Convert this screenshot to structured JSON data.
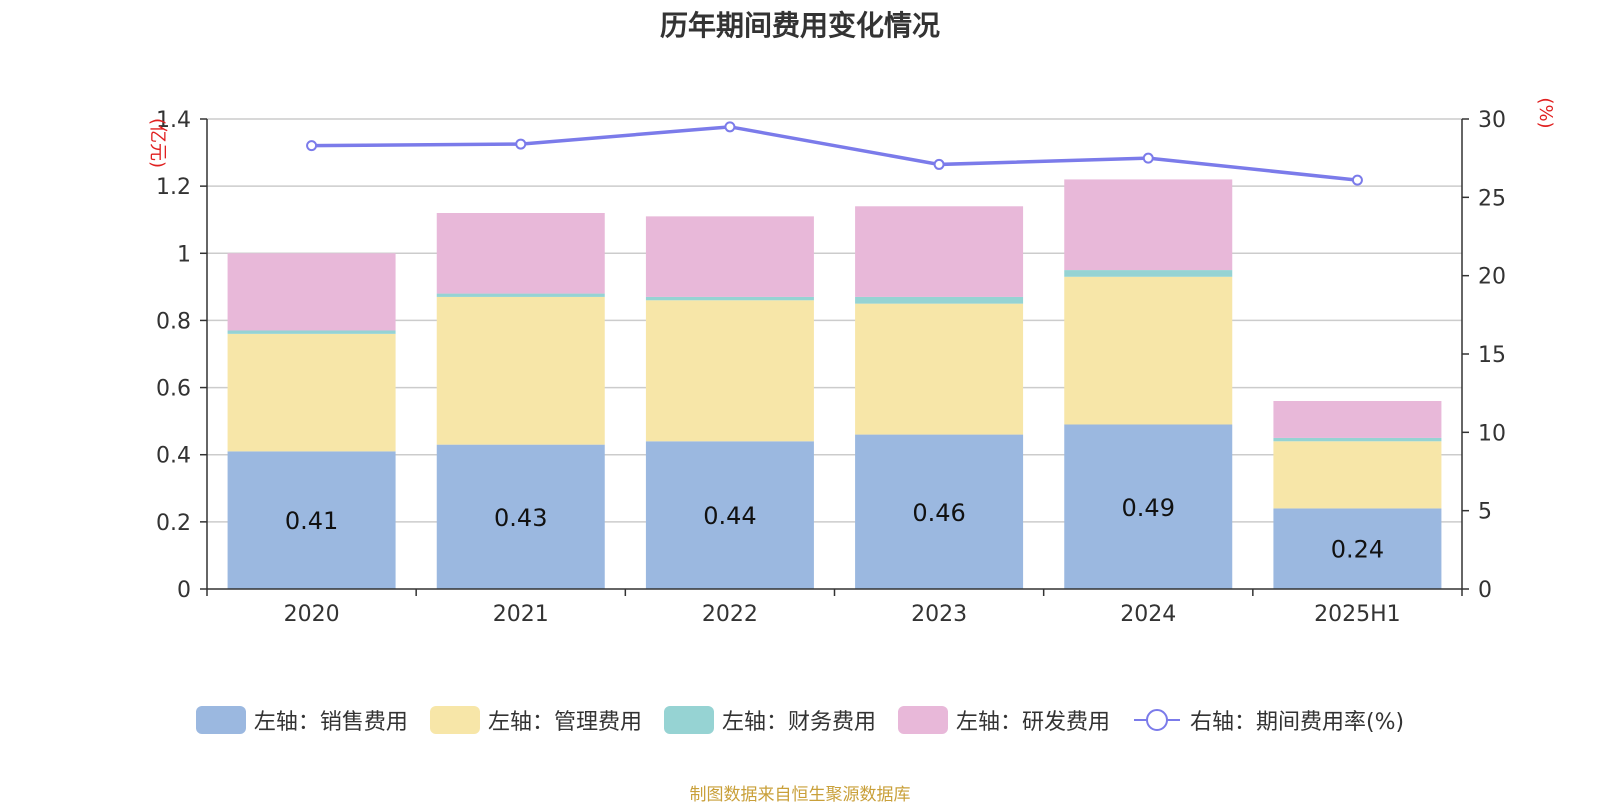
{
  "chart_data": {
    "type": "bar",
    "stacked": true,
    "title": "历年期间费用变化情况",
    "categories": [
      "2020",
      "2021",
      "2022",
      "2023",
      "2024",
      "2025H1"
    ],
    "left_axis": {
      "unit": "(亿元)",
      "ylim": [
        0,
        1.4
      ],
      "ticks": [
        "0",
        "0.2",
        "0.4",
        "0.6",
        "0.8",
        "1",
        "1.2",
        "1.4"
      ]
    },
    "right_axis": {
      "unit": "(%)",
      "ylim": [
        0,
        30
      ],
      "ticks": [
        "0",
        "5",
        "10",
        "15",
        "20",
        "25",
        "30"
      ]
    },
    "series": [
      {
        "name": "左轴：销售费用",
        "axis": "left",
        "kind": "bar",
        "color": "#9bb8e0",
        "values": [
          0.41,
          0.43,
          0.44,
          0.46,
          0.49,
          0.24
        ],
        "show_labels": true
      },
      {
        "name": "左轴：管理费用",
        "axis": "left",
        "kind": "bar",
        "color": "#f7e6a8",
        "values": [
          0.35,
          0.44,
          0.42,
          0.39,
          0.44,
          0.2
        ]
      },
      {
        "name": "左轴：财务费用",
        "axis": "left",
        "kind": "bar",
        "color": "#96d3d3",
        "values": [
          0.01,
          0.01,
          0.01,
          0.02,
          0.02,
          0.01
        ]
      },
      {
        "name": "左轴：研发费用",
        "axis": "left",
        "kind": "bar",
        "color": "#e8b8d9",
        "values": [
          0.23,
          0.24,
          0.24,
          0.27,
          0.27,
          0.11
        ]
      },
      {
        "name": "右轴：期间费用率(%)",
        "axis": "right",
        "kind": "line",
        "color": "#7b7bea",
        "values": [
          28.3,
          28.4,
          29.5,
          27.1,
          27.5,
          26.1
        ]
      }
    ],
    "grid": true,
    "legend_position": "bottom"
  },
  "source_note": {
    "text": "制图数据来自恒生聚源数据库",
    "color": "#c9a03a"
  },
  "axis_colors": {
    "unit": "#e02020",
    "grid": "#cccccc",
    "axis": "#333333"
  }
}
